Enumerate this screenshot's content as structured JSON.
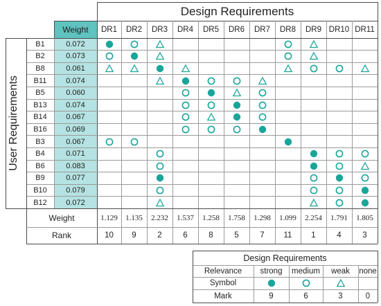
{
  "title": "Design Requirements",
  "side_title": "User Requirements",
  "weight_header": "Weight",
  "dr_headers": [
    "DR1",
    "DR2",
    "DR3",
    "DR4",
    "DR5",
    "DR6",
    "DR7",
    "DR8",
    "DR9",
    "DR10",
    "DR11"
  ],
  "rows": [
    {
      "label": "B1",
      "weight": "0.072",
      "marks": [
        "strong",
        "medium",
        "weak",
        "",
        "",
        "",
        "",
        "medium",
        "weak",
        "",
        ""
      ]
    },
    {
      "label": "B2",
      "weight": "0.073",
      "marks": [
        "medium",
        "strong",
        "weak",
        "",
        "",
        "",
        "",
        "medium",
        "weak",
        "",
        ""
      ]
    },
    {
      "label": "B8",
      "weight": "0.061",
      "marks": [
        "weak",
        "weak",
        "strong",
        "weak",
        "",
        "",
        "",
        "weak",
        "medium",
        "medium",
        "weak"
      ]
    },
    {
      "label": "B11",
      "weight": "0.074",
      "marks": [
        "",
        "",
        "weak",
        "strong",
        "medium",
        "medium",
        "weak",
        "",
        "",
        "",
        ""
      ]
    },
    {
      "label": "B5",
      "weight": "0.060",
      "marks": [
        "",
        "",
        "",
        "medium",
        "strong",
        "weak",
        "medium",
        "",
        "",
        "",
        ""
      ]
    },
    {
      "label": "B13",
      "weight": "0.074",
      "marks": [
        "",
        "",
        "",
        "medium",
        "medium",
        "strong",
        "medium",
        "",
        "",
        "",
        ""
      ]
    },
    {
      "label": "B14",
      "weight": "0.067",
      "marks": [
        "",
        "",
        "",
        "medium",
        "weak",
        "strong",
        "medium",
        "",
        "",
        "",
        ""
      ]
    },
    {
      "label": "B16",
      "weight": "0.069",
      "marks": [
        "",
        "",
        "",
        "medium",
        "medium",
        "medium",
        "strong",
        "",
        "",
        "",
        ""
      ]
    },
    {
      "label": "B3",
      "weight": "0.067",
      "marks": [
        "medium",
        "medium",
        "",
        "",
        "",
        "",
        "",
        "strong",
        "",
        "",
        ""
      ]
    },
    {
      "label": "B4",
      "weight": "0.071",
      "marks": [
        "",
        "",
        "medium",
        "",
        "",
        "",
        "",
        "",
        "strong",
        "medium",
        "medium"
      ]
    },
    {
      "label": "B6",
      "weight": "0.083",
      "marks": [
        "",
        "",
        "medium",
        "",
        "",
        "",
        "",
        "",
        "strong",
        "medium",
        "weak"
      ]
    },
    {
      "label": "B9",
      "weight": "0.077",
      "marks": [
        "",
        "",
        "strong",
        "",
        "",
        "",
        "",
        "",
        "medium",
        "strong",
        "medium"
      ]
    },
    {
      "label": "B10",
      "weight": "0.079",
      "marks": [
        "",
        "",
        "medium",
        "",
        "",
        "",
        "",
        "",
        "medium",
        "medium",
        "strong"
      ]
    },
    {
      "label": "B12",
      "weight": "0.072",
      "marks": [
        "",
        "",
        "weak",
        "",
        "",
        "",
        "",
        "",
        "weak",
        "medium",
        "strong"
      ]
    }
  ],
  "bottom_weight_label": "Weight",
  "bottom_weights": [
    "1.129",
    "1.135",
    "2.232",
    "1.537",
    "1.258",
    "1.758",
    "1.298",
    "1.099",
    "2.254",
    "1.791",
    "1.805"
  ],
  "rank_label": "Rank",
  "ranks": [
    "10",
    "9",
    "2",
    "6",
    "8",
    "5",
    "7",
    "11",
    "1",
    "4",
    "3"
  ],
  "legend": {
    "title": "Design Requirements",
    "relevance_label": "Relevance",
    "symbol_label": "Symbol",
    "mark_label": "Mark",
    "levels": [
      {
        "name": "strong",
        "symbol": "strong",
        "mark": "9"
      },
      {
        "name": "medium",
        "symbol": "medium",
        "mark": "6"
      },
      {
        "name": "weak",
        "symbol": "weak",
        "mark": "3"
      },
      {
        "name": "none",
        "symbol": "",
        "mark": "0"
      }
    ]
  },
  "colors": {
    "teal": "#1aa59a",
    "weight_header_bg": "#5fc3c0",
    "weight_col_bg": "#b5e2e2",
    "line": "#4a4a4a"
  }
}
